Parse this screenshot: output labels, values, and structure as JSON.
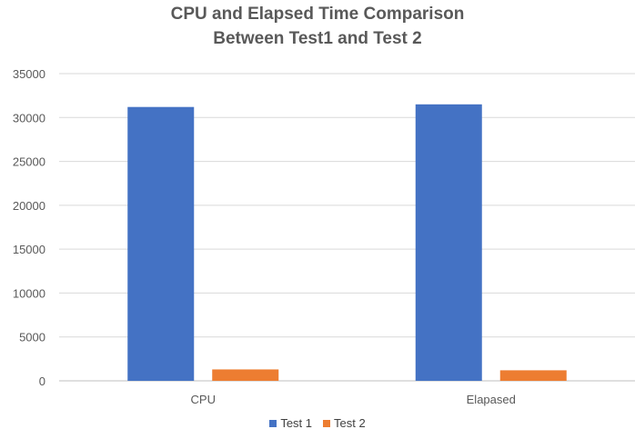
{
  "chart_data": {
    "type": "bar",
    "title": "CPU and Elapsed Time Comparison",
    "subtitle": "Between Test1 and Test 2",
    "categories": [
      "CPU",
      "Elapased"
    ],
    "series": [
      {
        "name": "Test 1",
        "color": "#4472C4",
        "values": [
          31200,
          31500
        ]
      },
      {
        "name": "Test 2",
        "color": "#ED7D31",
        "values": [
          1300,
          1200
        ]
      }
    ],
    "ylim": [
      0,
      35000
    ],
    "yticks": [
      "0",
      "5000",
      "10000",
      "15000",
      "20000",
      "25000",
      "30000",
      "35000"
    ],
    "grid": true,
    "legend_position": "bottom"
  }
}
